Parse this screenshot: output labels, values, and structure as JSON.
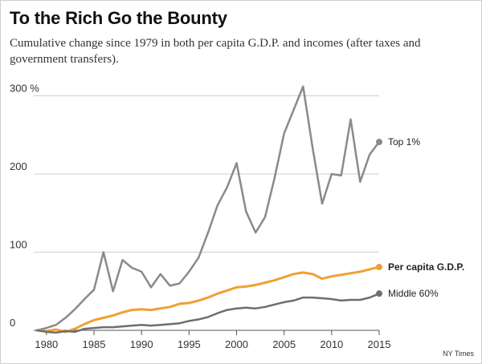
{
  "header": {
    "title": "To the Rich Go the Bounty",
    "subtitle": "Cumulative change since 1979 in both per capita G.D.P. and incomes (after taxes and government transfers)."
  },
  "source": "NY Times",
  "chart_data": {
    "type": "line",
    "title": "To the Rich Go the Bounty",
    "subtitle": "Cumulative change since 1979 in both per capita G.D.P. and incomes (after taxes and government transfers).",
    "xlabel": "",
    "ylabel": "",
    "xlim": [
      1979,
      2015
    ],
    "ylim": [
      0,
      320
    ],
    "x_ticks": [
      1980,
      1985,
      1990,
      1995,
      2000,
      2005,
      2010,
      2015
    ],
    "y_ticks": [
      0,
      100,
      200,
      300
    ],
    "y_tick_labels": [
      "0",
      "100",
      "200",
      "300 %"
    ],
    "grid": "horizontal",
    "legend": "direct labels at line ends",
    "series": [
      {
        "name": "Top 1%",
        "color": "#8a8a8a",
        "bold_label": false,
        "end_marker": true,
        "x": [
          1979,
          1980,
          1981,
          1982,
          1983,
          1984,
          1985,
          1986,
          1987,
          1988,
          1989,
          1990,
          1991,
          1992,
          1993,
          1994,
          1995,
          1996,
          1997,
          1998,
          1999,
          2000,
          2001,
          2002,
          2003,
          2004,
          2005,
          2006,
          2007,
          2008,
          2009,
          2010,
          2011,
          2012,
          2013,
          2014,
          2015
        ],
        "values": [
          0,
          3,
          7,
          16,
          27,
          40,
          52,
          100,
          50,
          90,
          80,
          75,
          55,
          72,
          57,
          60,
          75,
          93,
          125,
          160,
          183,
          214,
          152,
          125,
          145,
          195,
          252,
          282,
          312,
          233,
          162,
          200,
          198,
          270,
          190,
          225,
          241
        ]
      },
      {
        "name": "Per capita G.D.P.",
        "color": "#f0a030",
        "bold_label": true,
        "end_marker": true,
        "x": [
          1979,
          1980,
          1981,
          1982,
          1983,
          1984,
          1985,
          1986,
          1987,
          1988,
          1989,
          1990,
          1991,
          1992,
          1993,
          1994,
          1995,
          1996,
          1997,
          1998,
          1999,
          2000,
          2001,
          2002,
          2003,
          2004,
          2005,
          2006,
          2007,
          2008,
          2009,
          2010,
          2011,
          2012,
          2013,
          2014,
          2015
        ],
        "values": [
          0,
          -1,
          1,
          -2,
          2,
          8,
          13,
          16,
          19,
          23,
          26,
          27,
          26,
          28,
          30,
          34,
          35,
          38,
          42,
          47,
          51,
          55,
          56,
          58,
          61,
          64,
          68,
          72,
          74,
          72,
          66,
          69,
          71,
          73,
          75,
          78,
          81
        ]
      },
      {
        "name": "Middle 60%",
        "color": "#6e6e6e",
        "bold_label": false,
        "end_marker": true,
        "x": [
          1979,
          1980,
          1981,
          1982,
          1983,
          1984,
          1985,
          1986,
          1987,
          1988,
          1989,
          1990,
          1991,
          1992,
          1993,
          1994,
          1995,
          1996,
          1997,
          1998,
          1999,
          2000,
          2001,
          2002,
          2003,
          2004,
          2005,
          2006,
          2007,
          2008,
          2009,
          2010,
          2011,
          2012,
          2013,
          2014,
          2015
        ],
        "values": [
          0,
          -2,
          -3,
          -1,
          -2,
          2,
          3,
          4,
          4,
          5,
          6,
          7,
          6,
          7,
          8,
          9,
          12,
          14,
          17,
          22,
          26,
          28,
          29,
          28,
          30,
          33,
          36,
          38,
          42,
          42,
          41,
          40,
          38,
          39,
          39,
          42,
          47
        ]
      }
    ]
  }
}
